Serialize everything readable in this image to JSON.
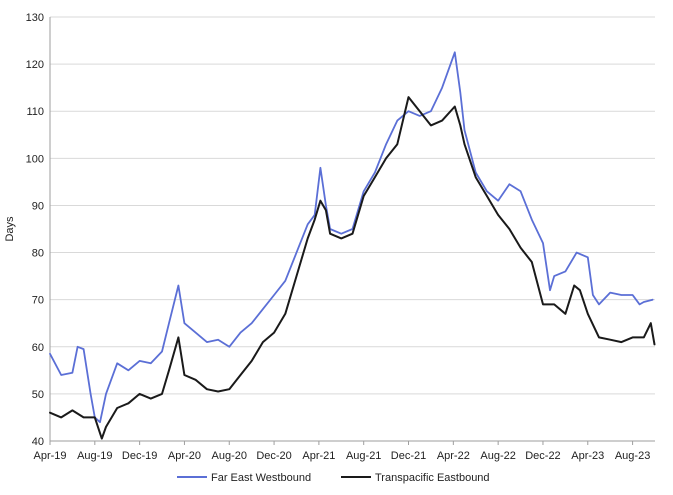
{
  "chart_data": {
    "type": "line",
    "title": "",
    "xlabel": "",
    "ylabel": "Days",
    "ylim": [
      40,
      130
    ],
    "yticks": [
      40,
      50,
      60,
      70,
      80,
      90,
      100,
      110,
      120,
      130
    ],
    "x_range": [
      "2019-04",
      "2023-10"
    ],
    "xtick_labels": [
      "Apr-19",
      "Aug-19",
      "Dec-19",
      "Apr-20",
      "Aug-20",
      "Dec-20",
      "Apr-21",
      "Aug-21",
      "Dec-21",
      "Apr-22",
      "Aug-22",
      "Dec-22",
      "Apr-23",
      "Aug-23"
    ],
    "grid": "horizontal",
    "legend_position": "bottom",
    "series": [
      {
        "name": "Far East Westbound",
        "color": "#5b6fd6",
        "points": [
          [
            "2019-04",
            58.5
          ],
          [
            "2019-05",
            54
          ],
          [
            "2019-06",
            54.5
          ],
          [
            "2019-06-15",
            60
          ],
          [
            "2019-07",
            59.5
          ],
          [
            "2019-07-20",
            50
          ],
          [
            "2019-08",
            45
          ],
          [
            "2019-08-15",
            44
          ],
          [
            "2019-09",
            50
          ],
          [
            "2019-10",
            56.5
          ],
          [
            "2019-11",
            55
          ],
          [
            "2019-12",
            57
          ],
          [
            "2020-01",
            56.5
          ],
          [
            "2020-02",
            59
          ],
          [
            "2020-02-20",
            65
          ],
          [
            "2020-03-15",
            73
          ],
          [
            "2020-04",
            65
          ],
          [
            "2020-05",
            63
          ],
          [
            "2020-06",
            61
          ],
          [
            "2020-07",
            61.5
          ],
          [
            "2020-08",
            60
          ],
          [
            "2020-09",
            63
          ],
          [
            "2020-10",
            65
          ],
          [
            "2020-11",
            68
          ],
          [
            "2020-12",
            71
          ],
          [
            "2021-01",
            74
          ],
          [
            "2021-02",
            80
          ],
          [
            "2021-03",
            86
          ],
          [
            "2021-03-20",
            88
          ],
          [
            "2021-04-05",
            98
          ],
          [
            "2021-04-20",
            90
          ],
          [
            "2021-05",
            85
          ],
          [
            "2021-06",
            84
          ],
          [
            "2021-07",
            85
          ],
          [
            "2021-08",
            93
          ],
          [
            "2021-09",
            97
          ],
          [
            "2021-10",
            103
          ],
          [
            "2021-11",
            108
          ],
          [
            "2021-12",
            110
          ],
          [
            "2022-01",
            109
          ],
          [
            "2022-02",
            110
          ],
          [
            "2022-03",
            115
          ],
          [
            "2022-04-05",
            122.5
          ],
          [
            "2022-04-20",
            114
          ],
          [
            "2022-05",
            106
          ],
          [
            "2022-06",
            97
          ],
          [
            "2022-07",
            93
          ],
          [
            "2022-08",
            91
          ],
          [
            "2022-09",
            94.5
          ],
          [
            "2022-10",
            93
          ],
          [
            "2022-11",
            87
          ],
          [
            "2022-12",
            82
          ],
          [
            "2022-12-20",
            72
          ],
          [
            "2023-01",
            75
          ],
          [
            "2023-02",
            76
          ],
          [
            "2023-03",
            80
          ],
          [
            "2023-04",
            79
          ],
          [
            "2023-04-15",
            71
          ],
          [
            "2023-05",
            69
          ],
          [
            "2023-06",
            71.5
          ],
          [
            "2023-07",
            71
          ],
          [
            "2023-08",
            71
          ],
          [
            "2023-08-20",
            69
          ],
          [
            "2023-09",
            69.5
          ],
          [
            "2023-09-25",
            70
          ]
        ]
      },
      {
        "name": "Transpacific Eastbound",
        "color": "#1a1a1a",
        "points": [
          [
            "2019-04",
            46
          ],
          [
            "2019-05",
            45
          ],
          [
            "2019-06",
            46.5
          ],
          [
            "2019-07",
            45
          ],
          [
            "2019-08",
            45
          ],
          [
            "2019-08-20",
            40.5
          ],
          [
            "2019-09",
            43
          ],
          [
            "2019-10",
            47
          ],
          [
            "2019-11",
            48
          ],
          [
            "2019-12",
            50
          ],
          [
            "2020-01",
            49
          ],
          [
            "2020-02",
            50
          ],
          [
            "2020-02-20",
            55
          ],
          [
            "2020-03-15",
            62
          ],
          [
            "2020-04",
            54
          ],
          [
            "2020-05",
            53
          ],
          [
            "2020-06",
            51
          ],
          [
            "2020-07",
            50.5
          ],
          [
            "2020-08",
            51
          ],
          [
            "2020-09",
            54
          ],
          [
            "2020-10",
            57
          ],
          [
            "2020-11",
            61
          ],
          [
            "2020-12",
            63
          ],
          [
            "2021-01",
            67
          ],
          [
            "2021-02",
            75
          ],
          [
            "2021-03",
            83
          ],
          [
            "2021-03-20",
            87
          ],
          [
            "2021-04-05",
            91
          ],
          [
            "2021-04-20",
            89
          ],
          [
            "2021-05",
            84
          ],
          [
            "2021-06",
            83
          ],
          [
            "2021-07",
            84
          ],
          [
            "2021-08",
            92
          ],
          [
            "2021-09",
            96
          ],
          [
            "2021-10",
            100
          ],
          [
            "2021-11",
            103
          ],
          [
            "2021-12",
            113
          ],
          [
            "2022-01",
            110
          ],
          [
            "2022-02",
            107
          ],
          [
            "2022-03",
            108
          ],
          [
            "2022-04-05",
            111
          ],
          [
            "2022-04-20",
            107
          ],
          [
            "2022-05",
            103
          ],
          [
            "2022-06",
            96
          ],
          [
            "2022-07",
            92
          ],
          [
            "2022-08",
            88
          ],
          [
            "2022-09",
            85
          ],
          [
            "2022-10",
            81
          ],
          [
            "2022-11",
            78
          ],
          [
            "2022-12",
            69
          ],
          [
            "2023-01",
            69
          ],
          [
            "2023-02",
            67
          ],
          [
            "2023-02-25",
            73
          ],
          [
            "2023-03-10",
            72
          ],
          [
            "2023-04",
            67
          ],
          [
            "2023-05",
            62
          ],
          [
            "2023-06",
            61.5
          ],
          [
            "2023-07",
            61
          ],
          [
            "2023-08",
            62
          ],
          [
            "2023-09",
            62
          ],
          [
            "2023-09-20",
            65
          ],
          [
            "2023-09-30",
            60.5
          ]
        ]
      }
    ]
  }
}
